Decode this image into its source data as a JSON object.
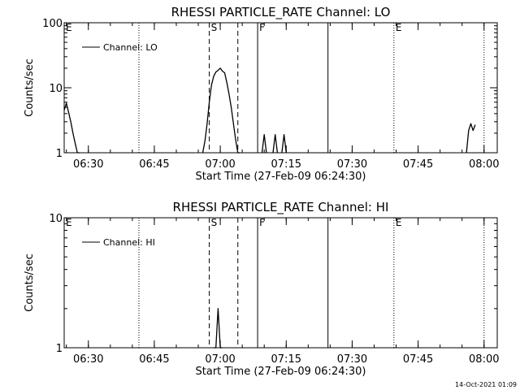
{
  "footer": {
    "timestamp": "14-Oct-2021 01:09"
  },
  "chart_data": [
    {
      "type": "line",
      "title": "RHESSI PARTICLE_RATE Channel: LO",
      "xlabel": "Start Time (27-Feb-09 06:24:30)",
      "ylabel": "Counts/sec",
      "yscale": "log",
      "ylim": [
        1,
        100
      ],
      "y_ticks": [
        {
          "v": 1,
          "label": "1"
        },
        {
          "v": 10,
          "label": "10"
        },
        {
          "v": 100,
          "label": "100"
        }
      ],
      "xlim": [
        "06:24:30",
        "08:03:00"
      ],
      "x_ticks": [
        "06:30",
        "06:45",
        "07:00",
        "07:15",
        "07:30",
        "07:45",
        "08:00"
      ],
      "legend": {
        "entries": [
          "Channel: LO"
        ],
        "position": "top-left"
      },
      "markers": [
        {
          "label": "E",
          "time": "06:24:30",
          "style": "none"
        },
        {
          "label": "",
          "time": "06:41:30",
          "style": "dotted"
        },
        {
          "label": "S",
          "time": "06:57:30",
          "style": "dashed"
        },
        {
          "label": "",
          "time": "07:04:00",
          "style": "dashed"
        },
        {
          "label": "F",
          "time": "07:08:30",
          "style": "solid"
        },
        {
          "label": "",
          "time": "07:24:30",
          "style": "solid"
        },
        {
          "label": "E",
          "time": "07:39:30",
          "style": "dotted"
        },
        {
          "label": "",
          "time": "08:00:00",
          "style": "dotted"
        }
      ],
      "series": [
        {
          "x": [
            "06:24:30",
            "06:25:00",
            "06:25:30",
            "06:26:00",
            "06:26:30",
            "06:27:00",
            "06:27:30",
            "06:28:00",
            "06:56:00",
            "06:56:30",
            "06:57:00",
            "06:57:30",
            "06:58:00",
            "06:58:30",
            "06:59:00",
            "06:59:30",
            "07:00:00",
            "07:00:30",
            "07:01:00",
            "07:01:30",
            "07:02:00",
            "07:02:30",
            "07:03:00",
            "07:03:30",
            "07:04:00",
            "07:04:30",
            "07:09:30",
            "07:10:00",
            "07:10:30",
            "07:12:00",
            "07:12:30",
            "07:13:00",
            "07:14:00",
            "07:14:30",
            "07:15:00",
            "07:56:00",
            "07:56:30",
            "07:57:00",
            "07:57:30",
            "07:58:00"
          ],
          "values": [
            4.5,
            5.8,
            4.2,
            3.0,
            2.0,
            1.4,
            1.0,
            1.0,
            1.0,
            1.5,
            2.8,
            6.0,
            11.0,
            15.0,
            17.5,
            18.5,
            20.0,
            18.0,
            17.0,
            12.0,
            8.0,
            5.0,
            2.8,
            1.6,
            1.0,
            1.0,
            1.0,
            1.9,
            1.0,
            1.0,
            1.9,
            1.0,
            1.0,
            1.9,
            1.0,
            1.0,
            2.2,
            2.8,
            2.2,
            2.7
          ],
          "segments": [
            [
              0,
              8
            ],
            [
              8,
              26
            ],
            [
              26,
              29
            ],
            [
              29,
              32
            ],
            [
              32,
              35
            ],
            [
              35,
              40
            ]
          ]
        }
      ]
    },
    {
      "type": "line",
      "title": "RHESSI PARTICLE_RATE Channel: HI",
      "xlabel": "Start Time (27-Feb-09 06:24:30)",
      "ylabel": "Counts/sec",
      "yscale": "log",
      "ylim": [
        1,
        10
      ],
      "y_ticks": [
        {
          "v": 1,
          "label": "1"
        },
        {
          "v": 10,
          "label": "10"
        }
      ],
      "xlim": [
        "06:24:30",
        "08:03:00"
      ],
      "x_ticks": [
        "06:30",
        "06:45",
        "07:00",
        "07:15",
        "07:30",
        "07:45",
        "08:00"
      ],
      "legend": {
        "entries": [
          "Channel: HI"
        ],
        "position": "top-left"
      },
      "markers": [
        {
          "label": "E",
          "time": "06:24:30",
          "style": "none"
        },
        {
          "label": "",
          "time": "06:41:30",
          "style": "dotted"
        },
        {
          "label": "S",
          "time": "06:57:30",
          "style": "dashed"
        },
        {
          "label": "",
          "time": "07:04:00",
          "style": "dashed"
        },
        {
          "label": "F",
          "time": "07:08:30",
          "style": "solid"
        },
        {
          "label": "",
          "time": "07:24:30",
          "style": "solid"
        },
        {
          "label": "E",
          "time": "07:39:30",
          "style": "dotted"
        },
        {
          "label": "",
          "time": "08:00:00",
          "style": "dotted"
        }
      ],
      "series": [
        {
          "x": [
            "06:58:30",
            "06:59:00",
            "06:59:30",
            "07:00:00",
            "07:00:30"
          ],
          "values": [
            1.0,
            1.0,
            2.0,
            1.0,
            1.0
          ],
          "segments": [
            [
              0,
              5
            ]
          ]
        }
      ]
    }
  ]
}
